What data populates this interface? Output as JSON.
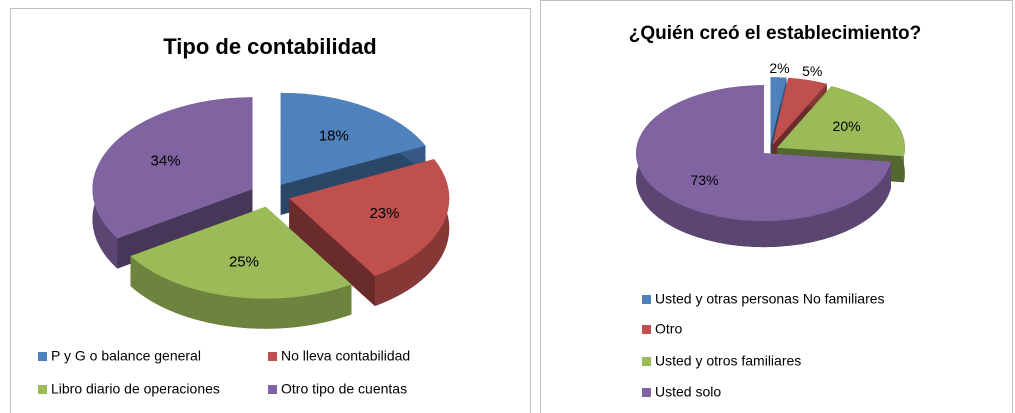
{
  "chart_data": [
    {
      "type": "pie",
      "title": "Tipo de contabilidad",
      "categories": [
        "P y G o balance general",
        "No lleva contabilidad",
        "Libro diario de operaciones",
        "Otro tipo de cuentas"
      ],
      "values": [
        18,
        23,
        25,
        34
      ],
      "value_labels": [
        "18%",
        "23%",
        "25%",
        "34%"
      ],
      "colors": [
        "#4f81bd",
        "#c0504d",
        "#9bbb59",
        "#8064a2"
      ],
      "legend": "bottom"
    },
    {
      "type": "pie",
      "title": "¿Quién creó el establecimiento?",
      "categories": [
        "Usted y otras personas No familiares",
        "Otro",
        "Usted y otros familiares",
        "Usted solo"
      ],
      "values": [
        2,
        5,
        20,
        73
      ],
      "value_labels": [
        "2%",
        "5%",
        "20%",
        "73%"
      ],
      "colors": [
        "#4f81bd",
        "#c0504d",
        "#9bbb59",
        "#8064a2"
      ],
      "legend": "bottom"
    }
  ]
}
